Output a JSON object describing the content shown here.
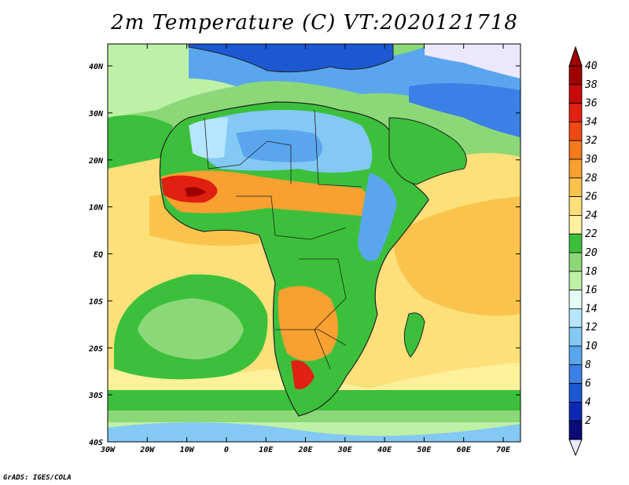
{
  "title": "2m Temperature (C) VT:2020121718",
  "footer": "GrADS: IGES/COLA",
  "map": {
    "variable": "2m Temperature",
    "units": "C",
    "valid_time": "2020121718",
    "lon_ticks": [
      "30W",
      "20W",
      "10W",
      "0",
      "10E",
      "20E",
      "30E",
      "40E",
      "50E",
      "60E",
      "70E"
    ],
    "lat_ticks": [
      "40N",
      "30N",
      "20N",
      "10N",
      "EQ",
      "10S",
      "20S",
      "30S",
      "40S"
    ]
  },
  "colorbar": {
    "labels": [
      "40",
      "38",
      "36",
      "34",
      "32",
      "30",
      "28",
      "26",
      "24",
      "22",
      "20",
      "18",
      "16",
      "14",
      "12",
      "10",
      "8",
      "6",
      "4",
      "2"
    ],
    "colors": [
      "#9e0000",
      "#c80a0a",
      "#e02010",
      "#f04a14",
      "#f47a1c",
      "#f8a030",
      "#fac44c",
      "#fde07a",
      "#fff09c",
      "#3cc03c",
      "#8cd878",
      "#bef0a6",
      "#e6fff4",
      "#b6e6ff",
      "#84c8f4",
      "#5aa6ee",
      "#3a80e6",
      "#1c58d2",
      "#0c28b4",
      "#0a0a78"
    ],
    "top_arrow_color": "#9e0000",
    "bottom_arrow_color": "#ece8fc"
  }
}
